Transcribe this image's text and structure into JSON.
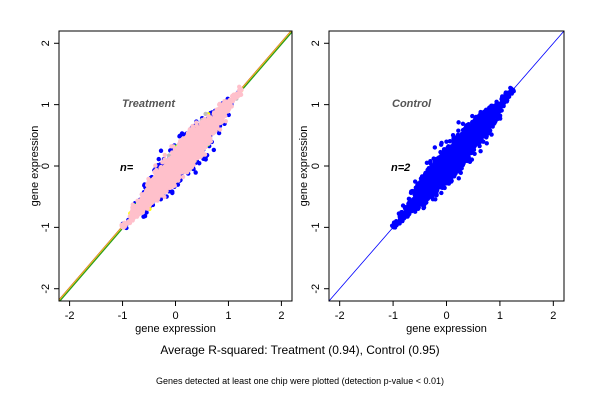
{
  "captions": {
    "main": "Average R-squared: Treatment (0.94), Control (0.95)",
    "sub": "Genes detected at least one chip were plotted (detection p-value < 0.01)"
  },
  "chart_data": [
    {
      "type": "scatter",
      "panel_label": "Treatment",
      "n_label": "n=",
      "xlabel": "gene expression",
      "ylabel": "gene expression",
      "xlim": [
        -2.2,
        2.2
      ],
      "ylim": [
        -2.2,
        2.2
      ],
      "x_ticks": [
        -2,
        -1,
        0,
        1,
        2
      ],
      "y_ticks": [
        -2,
        -1,
        0,
        1,
        2
      ],
      "grid": false,
      "cloud": {
        "center": [
          0.0,
          0.0
        ],
        "main_axis_span": [
          -1.0,
          1.25
        ],
        "spread_main_sd": 0.42,
        "spread_minor_sd": 0.13
      },
      "series": [
        {
          "color": "#0000ff",
          "spread_scale": 1.25,
          "count": 900
        },
        {
          "color": "#00ff00",
          "spread_scale": 1.15,
          "count": 60
        },
        {
          "color": "#ffff00",
          "spread_scale": 1.15,
          "count": 60
        },
        {
          "color": "#bebebe",
          "spread_scale": 1.1,
          "count": 90
        },
        {
          "color": "#ff0000",
          "spread_scale": 1.1,
          "count": 8
        },
        {
          "color": "#ffc0cb",
          "spread_scale": 0.95,
          "count": 2600
        }
      ],
      "reference_lines": [
        {
          "color": "#000000",
          "slope": 1,
          "intercept": 0,
          "width": 1.6
        },
        {
          "color": "#cc2222",
          "slope": 1,
          "intercept": 0.02,
          "width": 1.0
        },
        {
          "color": "#22aa22",
          "slope": 1,
          "intercept": -0.02,
          "width": 1.0
        },
        {
          "color": "#ddcc22",
          "slope": 1,
          "intercept": 0.01,
          "width": 1.2
        }
      ]
    },
    {
      "type": "scatter",
      "panel_label": "Control",
      "n_label": "n=2",
      "xlabel": "gene expression",
      "ylabel": "gene expression",
      "xlim": [
        -2.2,
        2.2
      ],
      "ylim": [
        -2.2,
        2.2
      ],
      "x_ticks": [
        -2,
        -1,
        0,
        1,
        2
      ],
      "y_ticks": [
        -2,
        -1,
        0,
        1,
        2
      ],
      "grid": false,
      "cloud": {
        "center": [
          0.0,
          0.0
        ],
        "main_axis_span": [
          -1.0,
          1.25
        ],
        "spread_main_sd": 0.42,
        "spread_minor_sd": 0.14
      },
      "series": [
        {
          "color": "#0000ff",
          "spread_scale": 1.0,
          "count": 3000
        }
      ],
      "reference_lines": [
        {
          "color": "#0000ff",
          "slope": 1,
          "intercept": 0,
          "width": 0.8
        }
      ]
    }
  ]
}
